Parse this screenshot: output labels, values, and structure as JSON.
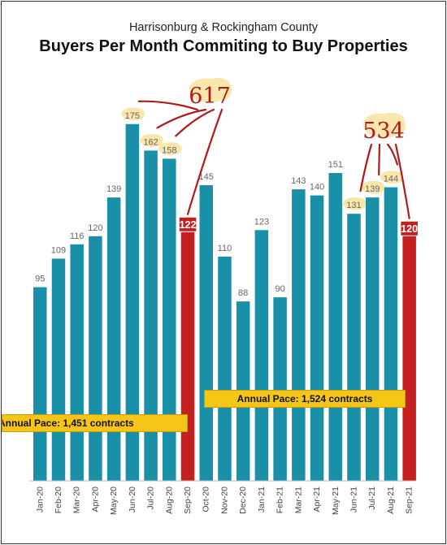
{
  "header": {
    "subtitle": "Harrisonburg & Rockingham County",
    "title": "Buyers Per Month Commiting to Buy Properties"
  },
  "chart_data": {
    "type": "bar",
    "title": "Buyers Per Month Commiting to Buy Properties",
    "subtitle": "Harrisonburg & Rockingham County",
    "categories": [
      "Jan-20",
      "Feb-20",
      "Mar-20",
      "Apr-20",
      "May-20",
      "Jun-20",
      "Jul-20",
      "Aug-20",
      "Sep-20",
      "Oct-20",
      "Nov-20",
      "Dec-20",
      "Jan-21",
      "Feb-21",
      "Mar-21",
      "Apr-21",
      "May-21",
      "Jun-21",
      "Jul-21",
      "Aug-21",
      "Sep-21"
    ],
    "values": [
      95,
      109,
      116,
      120,
      139,
      175,
      162,
      158,
      122,
      145,
      110,
      88,
      123,
      90,
      143,
      140,
      151,
      131,
      139,
      144,
      120
    ],
    "highlighted_categories": [
      "Sep-20",
      "Sep-21"
    ],
    "ylim": [
      0,
      200
    ],
    "xlabel": "",
    "ylabel": "",
    "grid": false,
    "colors": {
      "bar": "#1a8fa8",
      "highlight": "#c4201f",
      "annotation": "#b01a1a",
      "marker": "#f8e3a0",
      "pace_box": "#f5c518"
    },
    "annotations": [
      {
        "text": "617",
        "sums": [
          "Jun-20",
          "Jul-20",
          "Aug-20",
          "Sep-20"
        ]
      },
      {
        "text": "534",
        "sums": [
          "Jun-21",
          "Jul-21",
          "Aug-21",
          "Sep-21"
        ]
      }
    ],
    "pace_boxes": [
      {
        "text": "Annual Pace: 1,451 contracts"
      },
      {
        "text": "Annual Pace: 1,524 contracts"
      }
    ]
  }
}
